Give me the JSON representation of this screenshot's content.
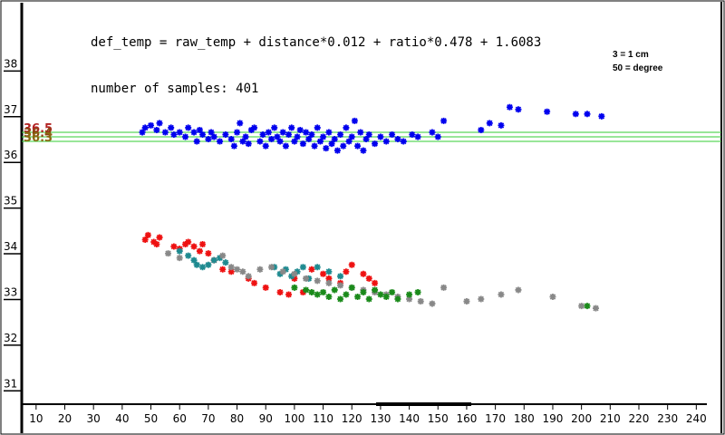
{
  "chart_data": {
    "type": "scatter",
    "formula": "def_temp = raw_temp + distance*0.012 + ratio*0.478 + 1.6083",
    "samples_text": "number of samples: 401",
    "legend_note": [
      "3 = 1 cm",
      "50 = degree"
    ],
    "x_ticks": [
      "10",
      "20",
      "30",
      "40",
      "50",
      "60",
      "70",
      "80",
      "90",
      "100",
      "110",
      "120",
      "130",
      "140",
      "150",
      "160",
      "170",
      "180",
      "190",
      "200",
      "210",
      "220",
      "230",
      "240"
    ],
    "y_ticks": [
      "31",
      "32",
      "33",
      "34",
      "35",
      "36",
      "37",
      "38"
    ],
    "xlim": [
      5,
      250
    ],
    "ylim": [
      30.55,
      38.8
    ],
    "reference_lines": [
      {
        "label": "36.5",
        "value": 36.5,
        "label_color": "#b22222",
        "line_color": "#33cc33"
      },
      {
        "label": "36.4",
        "value": 36.4,
        "label_color": "#8b4513",
        "line_color": "#33cc33"
      },
      {
        "label": "36.3",
        "value": 36.3,
        "label_color": "#8b6914",
        "line_color": "#33cc33"
      }
    ],
    "series": [
      {
        "color": "#0000ee",
        "points": [
          [
            47,
            36.5
          ],
          [
            48,
            36.6
          ],
          [
            50,
            36.65
          ],
          [
            52,
            36.55
          ],
          [
            53,
            36.7
          ],
          [
            55,
            36.5
          ],
          [
            57,
            36.6
          ],
          [
            58,
            36.45
          ],
          [
            60,
            36.5
          ],
          [
            62,
            36.4
          ],
          [
            63,
            36.6
          ],
          [
            65,
            36.5
          ],
          [
            66,
            36.3
          ],
          [
            67,
            36.55
          ],
          [
            68,
            36.45
          ],
          [
            70,
            36.35
          ],
          [
            71,
            36.5
          ],
          [
            72,
            36.4
          ],
          [
            74,
            36.3
          ],
          [
            76,
            36.45
          ],
          [
            78,
            36.35
          ],
          [
            79,
            36.2
          ],
          [
            80,
            36.5
          ],
          [
            81,
            36.7
          ],
          [
            82,
            36.3
          ],
          [
            83,
            36.4
          ],
          [
            84,
            36.25
          ],
          [
            85,
            36.55
          ],
          [
            86,
            36.6
          ],
          [
            88,
            36.3
          ],
          [
            89,
            36.45
          ],
          [
            90,
            36.2
          ],
          [
            91,
            36.5
          ],
          [
            92,
            36.35
          ],
          [
            93,
            36.6
          ],
          [
            94,
            36.4
          ],
          [
            95,
            36.3
          ],
          [
            96,
            36.5
          ],
          [
            97,
            36.2
          ],
          [
            98,
            36.45
          ],
          [
            99,
            36.6
          ],
          [
            100,
            36.3
          ],
          [
            101,
            36.4
          ],
          [
            102,
            36.55
          ],
          [
            103,
            36.25
          ],
          [
            104,
            36.5
          ],
          [
            105,
            36.35
          ],
          [
            106,
            36.45
          ],
          [
            107,
            36.2
          ],
          [
            108,
            36.6
          ],
          [
            109,
            36.3
          ],
          [
            110,
            36.4
          ],
          [
            111,
            36.15
          ],
          [
            112,
            36.5
          ],
          [
            113,
            36.25
          ],
          [
            114,
            36.35
          ],
          [
            115,
            36.1
          ],
          [
            116,
            36.45
          ],
          [
            117,
            36.2
          ],
          [
            118,
            36.6
          ],
          [
            119,
            36.3
          ],
          [
            120,
            36.4
          ],
          [
            121,
            36.75
          ],
          [
            122,
            36.2
          ],
          [
            123,
            36.5
          ],
          [
            124,
            36.1
          ],
          [
            125,
            36.35
          ],
          [
            126,
            36.45
          ],
          [
            128,
            36.25
          ],
          [
            130,
            36.4
          ],
          [
            132,
            36.3
          ],
          [
            134,
            36.45
          ],
          [
            136,
            36.35
          ],
          [
            138,
            36.3
          ],
          [
            141,
            36.45
          ],
          [
            143,
            36.4
          ],
          [
            148,
            36.5
          ],
          [
            150,
            36.4
          ],
          [
            152,
            36.75
          ],
          [
            165,
            36.55
          ],
          [
            168,
            36.7
          ],
          [
            172,
            36.65
          ],
          [
            175,
            37.05
          ],
          [
            178,
            37.0
          ],
          [
            188,
            36.95
          ],
          [
            198,
            36.9
          ],
          [
            202,
            36.9
          ],
          [
            207,
            36.85
          ]
        ]
      },
      {
        "color": "#ee1111",
        "points": [
          [
            48,
            34.15
          ],
          [
            49,
            34.25
          ],
          [
            51,
            34.1
          ],
          [
            52,
            34.05
          ],
          [
            53,
            34.2
          ],
          [
            58,
            34.0
          ],
          [
            60,
            33.95
          ],
          [
            62,
            34.05
          ],
          [
            63,
            34.1
          ],
          [
            65,
            34.0
          ],
          [
            67,
            33.9
          ],
          [
            68,
            34.05
          ],
          [
            70,
            33.85
          ],
          [
            72,
            33.7
          ],
          [
            75,
            33.5
          ],
          [
            78,
            33.45
          ],
          [
            84,
            33.3
          ],
          [
            86,
            33.2
          ],
          [
            90,
            33.1
          ],
          [
            95,
            33.0
          ],
          [
            98,
            32.95
          ],
          [
            100,
            33.3
          ],
          [
            103,
            33.0
          ],
          [
            106,
            33.5
          ],
          [
            110,
            33.4
          ],
          [
            112,
            33.3
          ],
          [
            116,
            33.2
          ],
          [
            118,
            33.45
          ],
          [
            120,
            33.6
          ],
          [
            124,
            33.4
          ],
          [
            126,
            33.3
          ],
          [
            128,
            33.2
          ]
        ]
      },
      {
        "color": "#1e8a90",
        "points": [
          [
            60,
            33.9
          ],
          [
            63,
            33.8
          ],
          [
            65,
            33.7
          ],
          [
            66,
            33.6
          ],
          [
            68,
            33.55
          ],
          [
            70,
            33.6
          ],
          [
            72,
            33.7
          ],
          [
            74,
            33.75
          ],
          [
            76,
            33.65
          ],
          [
            93,
            33.55
          ],
          [
            95,
            33.4
          ],
          [
            97,
            33.5
          ],
          [
            99,
            33.35
          ],
          [
            101,
            33.45
          ],
          [
            103,
            33.55
          ],
          [
            105,
            33.3
          ],
          [
            108,
            33.55
          ],
          [
            112,
            33.45
          ],
          [
            116,
            33.35
          ]
        ]
      },
      {
        "color": "#888888",
        "points": [
          [
            56,
            33.85
          ],
          [
            60,
            33.75
          ],
          [
            75,
            33.8
          ],
          [
            78,
            33.55
          ],
          [
            80,
            33.5
          ],
          [
            82,
            33.45
          ],
          [
            84,
            33.35
          ],
          [
            88,
            33.5
          ],
          [
            92,
            33.55
          ],
          [
            96,
            33.45
          ],
          [
            100,
            33.4
          ],
          [
            104,
            33.3
          ],
          [
            108,
            33.25
          ],
          [
            112,
            33.2
          ],
          [
            116,
            33.15
          ],
          [
            120,
            33.1
          ],
          [
            124,
            33.05
          ],
          [
            128,
            33.0
          ],
          [
            132,
            32.95
          ],
          [
            136,
            32.9
          ],
          [
            140,
            32.85
          ],
          [
            144,
            32.8
          ],
          [
            148,
            32.75
          ],
          [
            152,
            33.1
          ],
          [
            160,
            32.8
          ],
          [
            165,
            32.85
          ],
          [
            172,
            32.95
          ],
          [
            178,
            33.05
          ],
          [
            190,
            32.9
          ],
          [
            200,
            32.7
          ],
          [
            205,
            32.65
          ]
        ]
      },
      {
        "color": "#1a8a1a",
        "points": [
          [
            100,
            33.1
          ],
          [
            104,
            33.05
          ],
          [
            106,
            33.0
          ],
          [
            108,
            32.95
          ],
          [
            110,
            33.0
          ],
          [
            112,
            32.9
          ],
          [
            114,
            33.05
          ],
          [
            116,
            32.85
          ],
          [
            118,
            32.95
          ],
          [
            120,
            33.1
          ],
          [
            122,
            32.9
          ],
          [
            124,
            33.0
          ],
          [
            126,
            32.85
          ],
          [
            128,
            33.05
          ],
          [
            130,
            32.95
          ],
          [
            132,
            32.9
          ],
          [
            134,
            33.0
          ],
          [
            136,
            32.85
          ],
          [
            140,
            32.95
          ],
          [
            143,
            33.0
          ],
          [
            202,
            32.7
          ]
        ]
      }
    ]
  }
}
